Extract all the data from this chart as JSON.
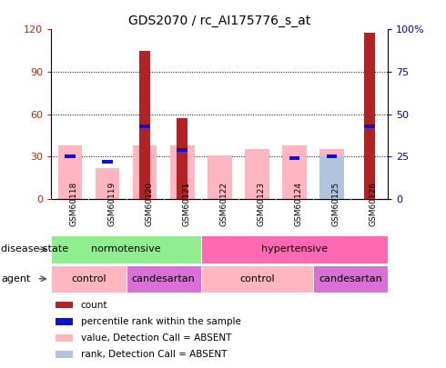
{
  "title": "GDS2070 / rc_AI175776_s_at",
  "samples": [
    "GSM60118",
    "GSM60119",
    "GSM60120",
    "GSM60121",
    "GSM60122",
    "GSM60123",
    "GSM60124",
    "GSM60125",
    "GSM60126"
  ],
  "count_values": [
    0,
    0,
    105,
    57,
    0,
    0,
    0,
    0,
    118
  ],
  "percentile_rank": [
    25,
    22,
    43,
    29,
    null,
    null,
    24,
    25,
    43
  ],
  "value_absent": [
    38,
    22,
    38,
    38,
    31,
    35,
    38,
    35,
    null
  ],
  "rank_absent": [
    null,
    null,
    null,
    null,
    null,
    null,
    null,
    25,
    null
  ],
  "left_ylim": [
    0,
    120
  ],
  "right_ylim": [
    0,
    100
  ],
  "left_yticks": [
    0,
    30,
    60,
    90,
    120
  ],
  "right_yticks": [
    0,
    25,
    50,
    75,
    100
  ],
  "right_yticklabels": [
    "0",
    "25",
    "50",
    "75",
    "100%"
  ],
  "color_count": "#B22222",
  "color_percentile": "#1111CC",
  "color_value_absent": "#FFB6C1",
  "color_rank_absent": "#B0C4DE",
  "label_count": "count",
  "label_percentile": "percentile rank within the sample",
  "label_value_absent": "value, Detection Call = ABSENT",
  "label_rank_absent": "rank, Detection Call = ABSENT",
  "disease_state_label": "disease state",
  "agent_label": "agent",
  "normotensive_color": "#90EE90",
  "hypertensive_color": "#FF69B4",
  "control_color": "#FFB6C1",
  "candesartan_color": "#DA70D6",
  "bg_color": "#E8E8E8"
}
